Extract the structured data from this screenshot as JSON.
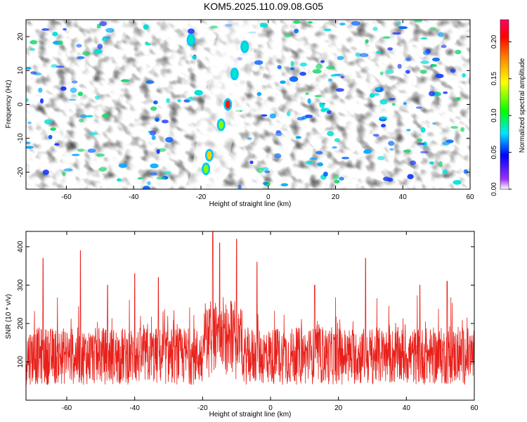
{
  "title": "KOM5.2025.110.09.08.G05",
  "chart_data": [
    {
      "type": "heatmap",
      "xlabel": "Height of straight line (km)",
      "ylabel": "Frequency (Hz)",
      "xlim": [
        -72,
        60
      ],
      "ylim": [
        -25,
        25
      ],
      "xticks": [
        -60,
        -40,
        -20,
        0,
        20,
        40,
        60
      ],
      "yticks": [
        -20,
        -10,
        0,
        10,
        20
      ],
      "colorbar": {
        "label": "Normalized spectral amplitude",
        "range": [
          0,
          0.23
        ],
        "ticks": [
          0.0,
          0.05,
          0.1,
          0.15,
          0.2
        ],
        "colors": [
          "#ffffff",
          "#8800ff",
          "#0000ff",
          "#00ffff",
          "#00ff00",
          "#ffff00",
          "#ff8800",
          "#ff0000",
          "#ff0088"
        ]
      },
      "ridge": [
        {
          "x": -18.5,
          "y": -19,
          "amp": 0.16
        },
        {
          "x": -17.5,
          "y": -15,
          "amp": 0.18
        },
        {
          "x": -14,
          "y": -6,
          "amp": 0.14
        },
        {
          "x": -12,
          "y": 0,
          "amp": 0.22
        },
        {
          "x": -10,
          "y": 9,
          "amp": 0.12
        },
        {
          "x": -7,
          "y": 17,
          "amp": 0.1
        },
        {
          "x": -23,
          "y": 19,
          "amp": 0.11
        }
      ]
    },
    {
      "type": "line",
      "xlabel": "Height of straight line (km)",
      "ylabel": "SNR (10 * v/v)",
      "xlim": [
        -72,
        60
      ],
      "ylim": [
        0,
        440
      ],
      "xticks": [
        -60,
        -40,
        -20,
        0,
        20,
        40,
        60
      ],
      "yticks": [
        100,
        200,
        300,
        400
      ],
      "series": [
        {
          "color": "#e8201a",
          "peaks": [
            {
              "x": -67,
              "y": 370
            },
            {
              "x": -56,
              "y": 390
            },
            {
              "x": -48,
              "y": 300
            },
            {
              "x": -40,
              "y": 330
            },
            {
              "x": -33,
              "y": 320
            },
            {
              "x": -17,
              "y": 440
            },
            {
              "x": -15,
              "y": 410
            },
            {
              "x": -10,
              "y": 420
            },
            {
              "x": -4,
              "y": 360
            },
            {
              "x": 13,
              "y": 300
            },
            {
              "x": 28,
              "y": 370
            },
            {
              "x": 44,
              "y": 300
            },
            {
              "x": 52,
              "y": 310
            }
          ]
        }
      ]
    }
  ]
}
